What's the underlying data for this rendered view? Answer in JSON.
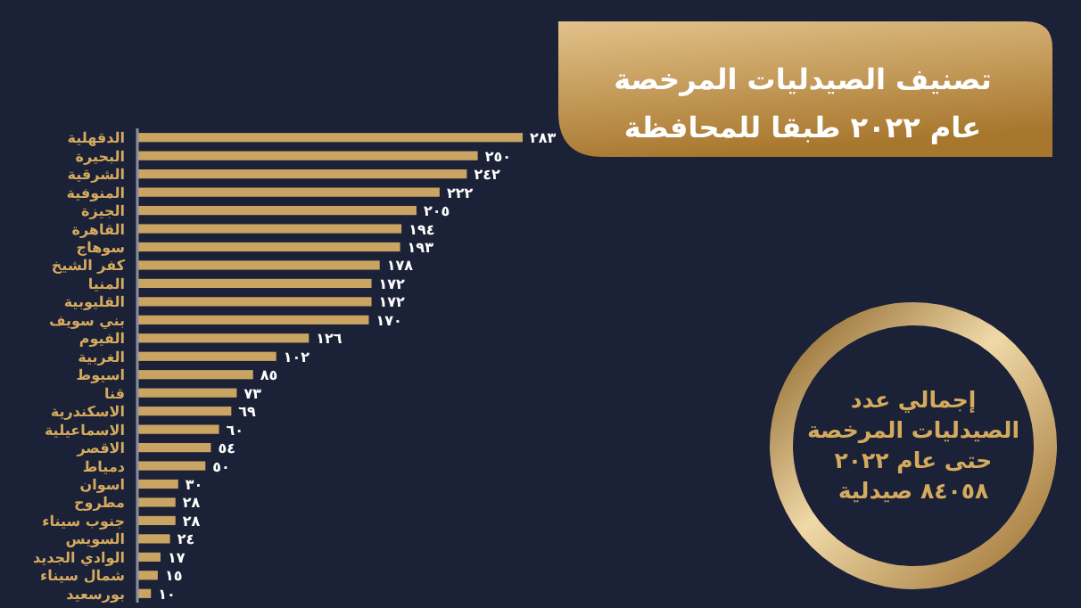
{
  "chart_data": {
    "type": "bar",
    "orientation": "horizontal",
    "title": "تصنيف الصيدليات المرخصة",
    "subtitle": "عام ٢٠٢٢ طبقا للمحافظة",
    "categories": [
      "الدقهلية",
      "البحيرة",
      "الشرقية",
      "المنوفية",
      "الجيزة",
      "القاهرة",
      "سوهاج",
      "كفر الشيخ",
      "المنيا",
      "القليوبية",
      "بني سويف",
      "الفيوم",
      "الغربية",
      "اسيوط",
      "قنا",
      "الاسكندرية",
      "الاسماعيلية",
      "الاقصر",
      "دمياط",
      "اسوان",
      "مطروح",
      "جنوب سيناء",
      "السويس",
      "الوادي الجديد",
      "شمال سيناء",
      "بورسعيد"
    ],
    "values": [
      283,
      250,
      242,
      222,
      205,
      194,
      193,
      178,
      172,
      172,
      170,
      126,
      102,
      85,
      73,
      69,
      60,
      54,
      50,
      30,
      28,
      28,
      24,
      17,
      15,
      10
    ],
    "value_labels": [
      "٢٨٣",
      "٢٥٠",
      "٢٤٢",
      "٢٢٢",
      "٢٠٥",
      "١٩٤",
      "١٩٣",
      "١٧٨",
      "١٧٢",
      "١٧٢",
      "١٧٠",
      "١٢٦",
      "١٠٢",
      "٨٥",
      "٧٣",
      "٦٩",
      "٦٠",
      "٥٤",
      "٥٠",
      "٣٠",
      "٢٨",
      "٢٨",
      "٢٤",
      "١٧",
      "١٥",
      "١٠"
    ],
    "color": "#c9a463",
    "annotations": [
      "إجمالي عدد\nالصيدليات المرخصة\nحتى عام ٢٠٢٢\n٨٤٠٥٨ صيدلية"
    ]
  }
}
